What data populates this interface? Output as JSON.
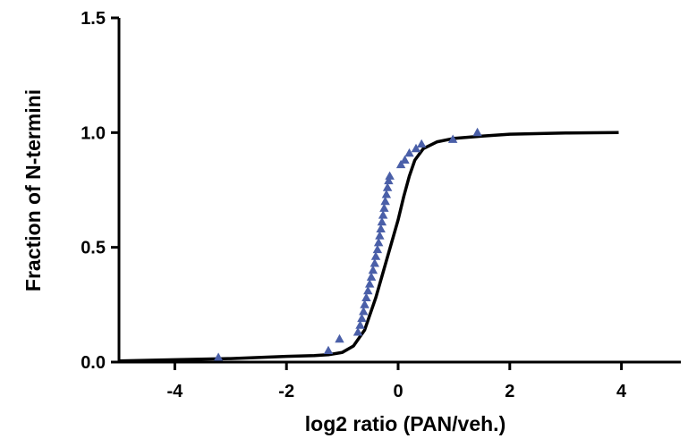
{
  "chart_data": {
    "type": "scatter",
    "title": "",
    "xlabel": "log2 ratio  (PAN/veh.)",
    "ylabel": "Fraction of N-termini",
    "xlim": [
      -5,
      5
    ],
    "ylim": [
      0,
      1.5
    ],
    "x_ticks": [
      -4,
      -2,
      0,
      2,
      4
    ],
    "y_ticks": [
      0.0,
      0.5,
      1.0,
      1.5
    ],
    "x_tick_labels": [
      "-4",
      "-2",
      "0",
      "2",
      "4"
    ],
    "y_tick_labels": [
      "0.0",
      "0.5",
      "1.0",
      "1.5"
    ],
    "grid": false,
    "legend": "none",
    "marker_color": "#4a5fa8",
    "line_color": "#000000",
    "series": [
      {
        "kind": "points",
        "marker": "triangle",
        "points": [
          [
            -3.22,
            0.02
          ],
          [
            -1.25,
            0.05
          ],
          [
            -1.05,
            0.1
          ],
          [
            -0.72,
            0.13
          ],
          [
            -0.68,
            0.16
          ],
          [
            -0.65,
            0.19
          ],
          [
            -0.62,
            0.22
          ],
          [
            -0.6,
            0.25
          ],
          [
            -0.57,
            0.28
          ],
          [
            -0.54,
            0.31
          ],
          [
            -0.51,
            0.34
          ],
          [
            -0.48,
            0.37
          ],
          [
            -0.45,
            0.4
          ],
          [
            -0.42,
            0.43
          ],
          [
            -0.4,
            0.46
          ],
          [
            -0.37,
            0.49
          ],
          [
            -0.35,
            0.52
          ],
          [
            -0.33,
            0.55
          ],
          [
            -0.31,
            0.58
          ],
          [
            -0.29,
            0.61
          ],
          [
            -0.27,
            0.64
          ],
          [
            -0.25,
            0.67
          ],
          [
            -0.23,
            0.7
          ],
          [
            -0.21,
            0.73
          ],
          [
            -0.19,
            0.76
          ],
          [
            -0.17,
            0.79
          ],
          [
            -0.15,
            0.81
          ],
          [
            0.05,
            0.86
          ],
          [
            0.12,
            0.88
          ],
          [
            0.2,
            0.91
          ],
          [
            0.32,
            0.93
          ],
          [
            0.42,
            0.95
          ],
          [
            0.98,
            0.97
          ],
          [
            1.42,
            1.0
          ]
        ]
      },
      {
        "kind": "curve",
        "points": [
          [
            -5,
            0.005
          ],
          [
            -4,
            0.01
          ],
          [
            -3,
            0.015
          ],
          [
            -2.5,
            0.02
          ],
          [
            -2,
            0.025
          ],
          [
            -1.5,
            0.028
          ],
          [
            -1.25,
            0.032
          ],
          [
            -1.0,
            0.042
          ],
          [
            -0.8,
            0.07
          ],
          [
            -0.6,
            0.14
          ],
          [
            -0.4,
            0.28
          ],
          [
            -0.2,
            0.45
          ],
          [
            0.0,
            0.62
          ],
          [
            0.1,
            0.72
          ],
          [
            0.2,
            0.81
          ],
          [
            0.3,
            0.88
          ],
          [
            0.45,
            0.93
          ],
          [
            0.7,
            0.96
          ],
          [
            1.0,
            0.975
          ],
          [
            1.5,
            0.985
          ],
          [
            2.0,
            0.993
          ],
          [
            3.0,
            0.998
          ],
          [
            3.95,
            1.0
          ]
        ]
      }
    ]
  }
}
